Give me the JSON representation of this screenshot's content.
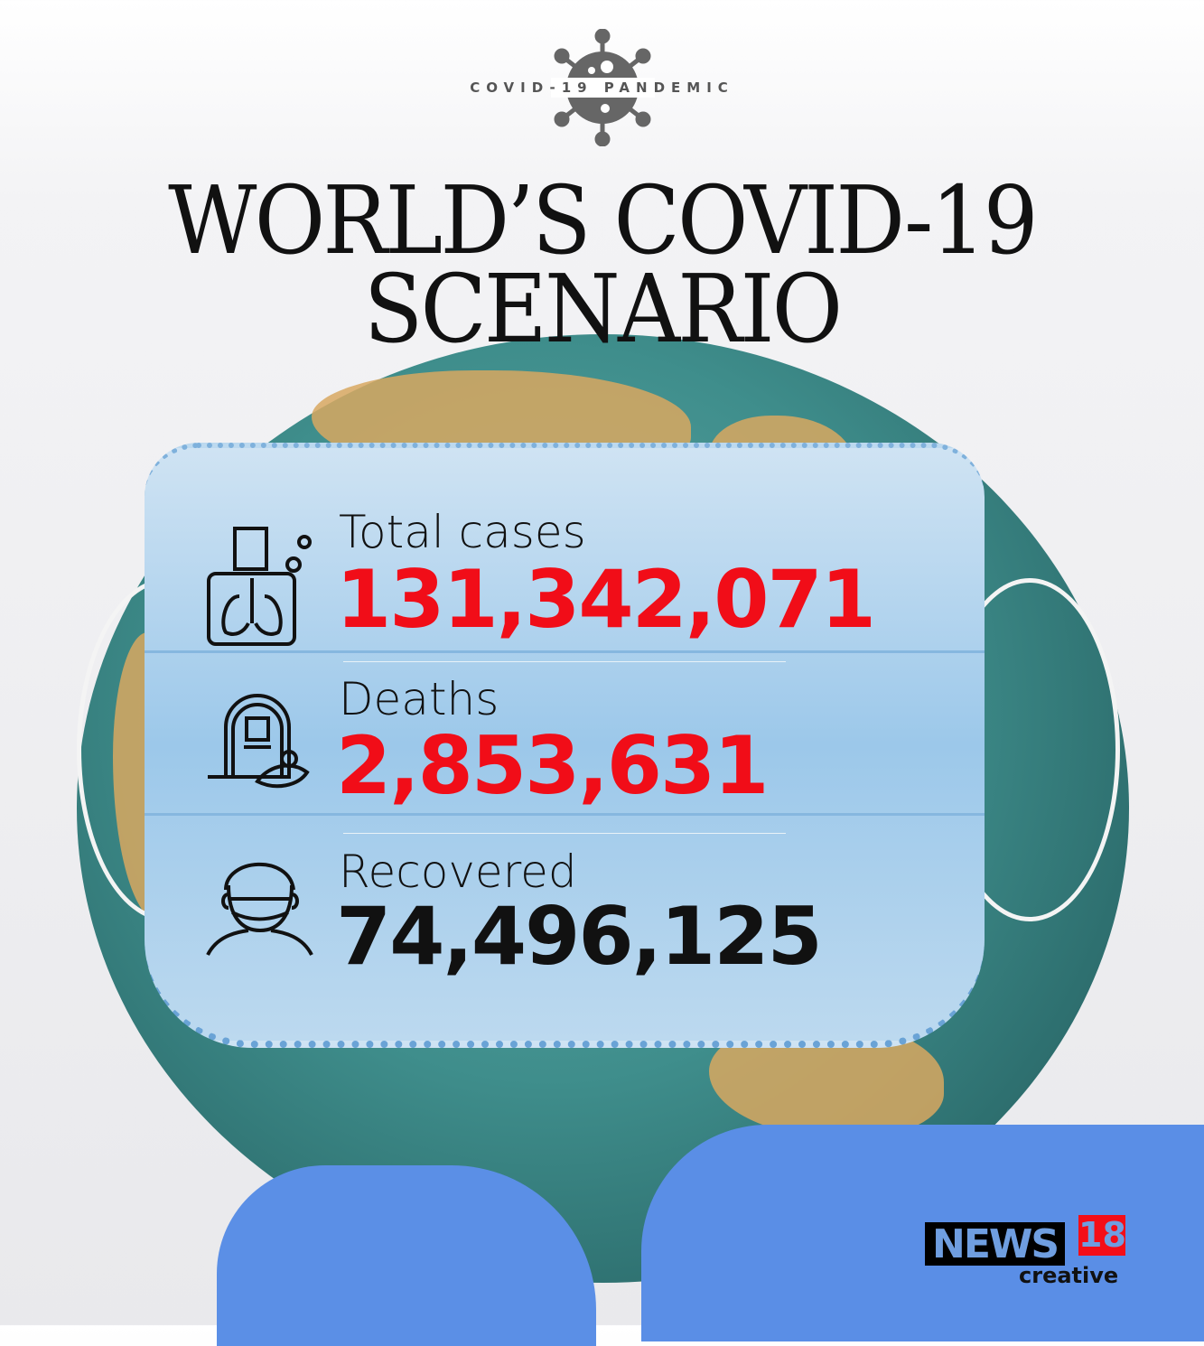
{
  "header": {
    "tag": "COVID-19 PANDEMIC",
    "title_line1": "WORLD’S COVID-19",
    "title_line2": "SCENARIO"
  },
  "stats": [
    {
      "label": "Total cases",
      "value": "131,342,071",
      "icon": "lungs-patient-icon",
      "color": "#f10d18"
    },
    {
      "label": "Deaths",
      "value": "2,853,631",
      "icon": "grave-flowers-icon",
      "color": "#f10d18"
    },
    {
      "label": "Recovered",
      "value": "74,496,125",
      "icon": "masked-person-icon",
      "color": "#111111"
    }
  ],
  "logo": {
    "news": "NEWS",
    "number": "18",
    "sub": "creative"
  }
}
